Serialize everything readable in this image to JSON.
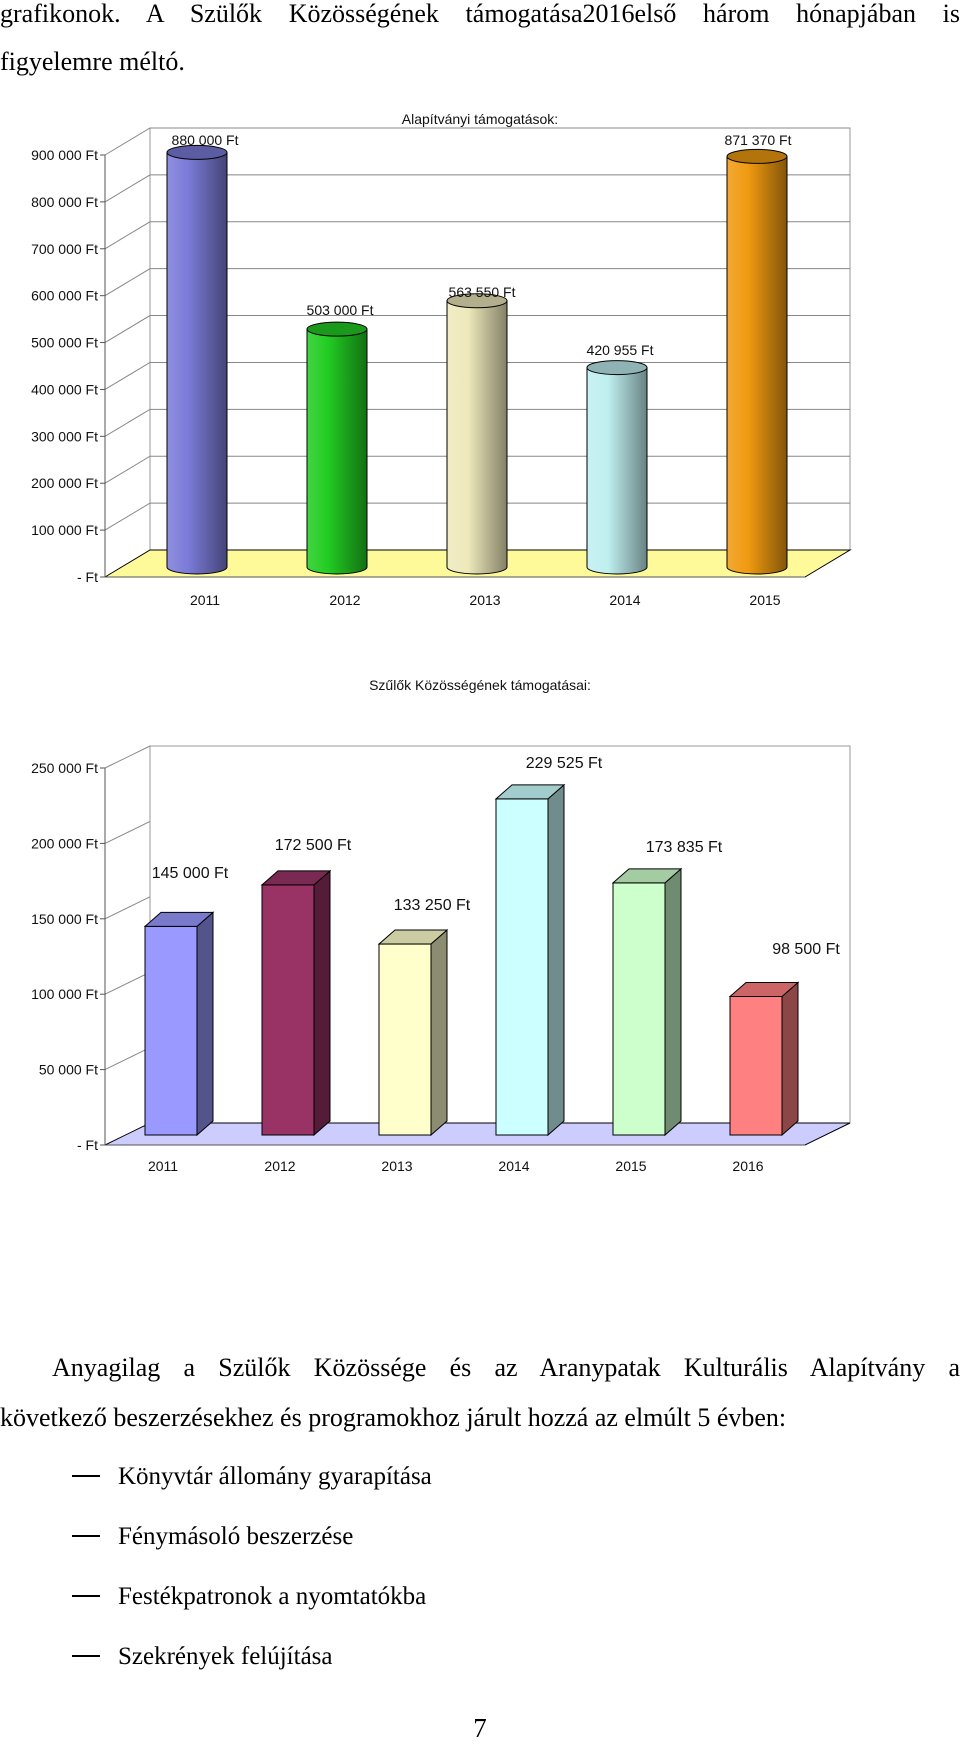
{
  "intro": {
    "line1": "grafikonok. A Szülők Közösségének támogatása2016első három hónapjában is",
    "line2": "figyelemre méltó."
  },
  "chart_data": [
    {
      "type": "bar",
      "title": "Alapítványi támogatások:",
      "categories": [
        "2011",
        "2012",
        "2013",
        "2014",
        "2015"
      ],
      "values": [
        880000,
        503000,
        563550,
        420955,
        871370
      ],
      "data_labels": [
        "880 000 Ft",
        "503 000 Ft",
        "563 550 Ft",
        "420 955 Ft",
        "871 370 Ft"
      ],
      "yticks": [
        0,
        100000,
        200000,
        300000,
        400000,
        500000,
        600000,
        700000,
        800000,
        900000
      ],
      "ytick_labels": [
        "- Ft",
        "100 000 Ft",
        "200 000 Ft",
        "300 000 Ft",
        "400 000 Ft",
        "500 000 Ft",
        "600 000 Ft",
        "700 000 Ft",
        "800 000 Ft",
        "900 000 Ft"
      ],
      "ylim": [
        0,
        900000
      ],
      "grid": true,
      "bar_colors": [
        "#7b7bd9",
        "#22cc22",
        "#eee9bb",
        "#bfeff0",
        "#f09a10"
      ],
      "floor_color": "#fffa99"
    },
    {
      "type": "bar",
      "title": "Szűlők Közösségének támogatásai:",
      "categories": [
        "2011",
        "2012",
        "2013",
        "2014",
        "2015",
        "2016"
      ],
      "values": [
        145000,
        172500,
        133250,
        229525,
        173835,
        98500
      ],
      "data_labels": [
        "145 000 Ft",
        "172 500 Ft",
        "133 250 Ft",
        "229 525 Ft",
        "173 835 Ft",
        "98 500 Ft"
      ],
      "yticks": [
        0,
        50000,
        100000,
        150000,
        200000,
        250000
      ],
      "ytick_labels": [
        "- Ft",
        "50 000 Ft",
        "100 000 Ft",
        "150 000 Ft",
        "200 000 Ft",
        "250 000 Ft"
      ],
      "ylim": [
        0,
        250000
      ],
      "grid": true,
      "bar_colors": [
        "#9999ff",
        "#993366",
        "#ffffcc",
        "#ccffff",
        "#ccffcc",
        "#ff8080"
      ],
      "floor_color": "#ccccff"
    }
  ],
  "paragraph": {
    "line1": "Anyagilag a Szülők Közössége és az Aranypatak Kulturális Alapítvány a",
    "line2": "következő beszerzésekhez és programokhoz járult hozzá az elmúlt 5 évben:"
  },
  "list": [
    "Könyvtár állomány gyarapítása",
    "Fénymásoló beszerzése",
    "Festékpatronok a nyomtatókba",
    "Szekrények felújítása"
  ],
  "page_number": "7"
}
